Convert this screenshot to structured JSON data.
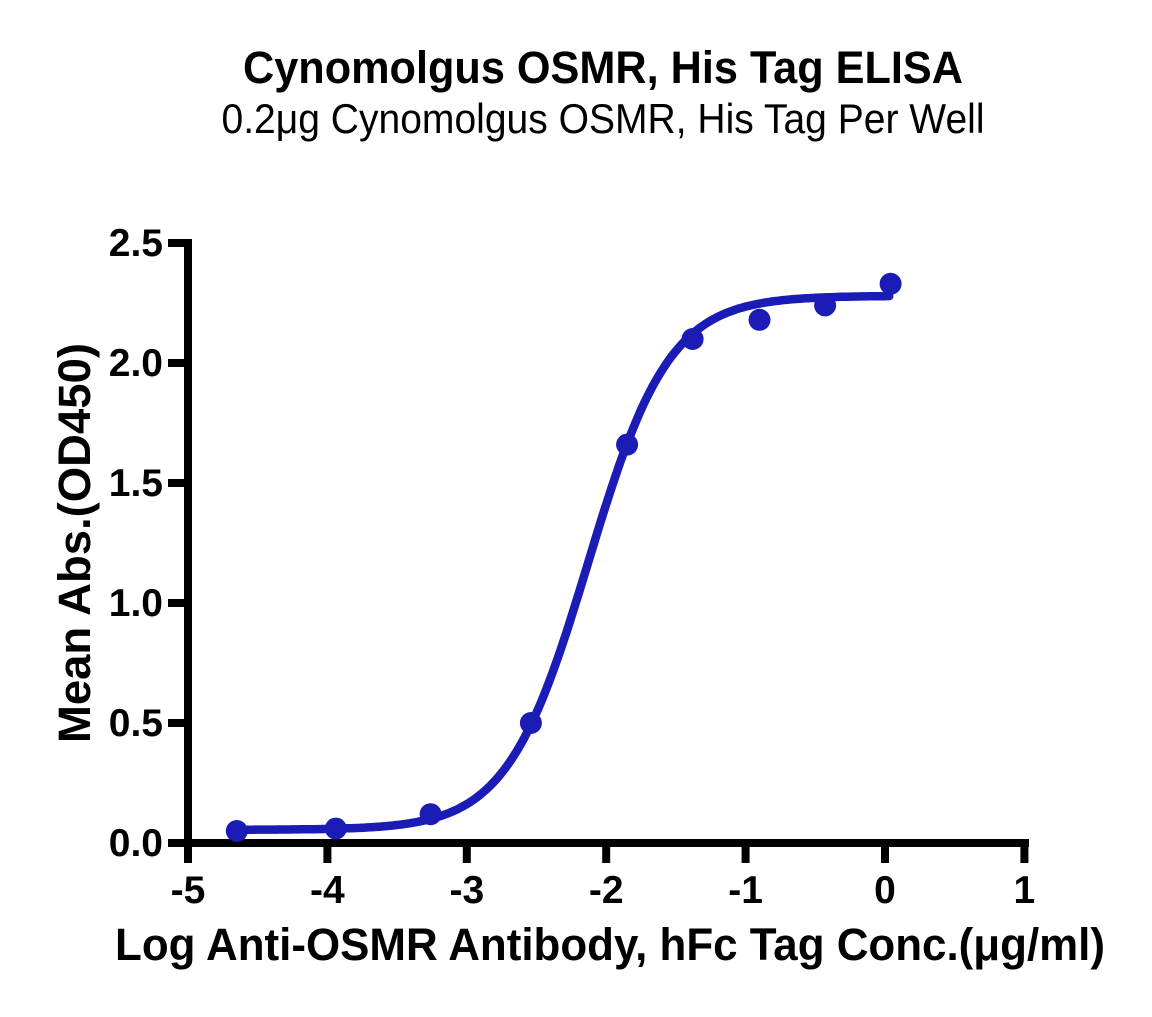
{
  "chart_data": {
    "type": "scatter",
    "title": "Cynomolgus OSMR, His Tag ELISA",
    "subtitle": "0.2μg Cynomolgus OSMR, His Tag Per Well",
    "xlabel": "Log Anti-OSMR Antibody, hFc Tag Conc.(μg/ml)",
    "ylabel": "Mean Abs.(OD450)",
    "xlim": [
      -5,
      1
    ],
    "ylim": [
      0.0,
      2.5
    ],
    "x_ticks": [
      -5,
      -4,
      -3,
      -2,
      -1,
      0,
      1
    ],
    "x_tick_labels": [
      "-5",
      "-4",
      "-3",
      "-2",
      "-1",
      "0",
      "1"
    ],
    "y_ticks": [
      0.0,
      0.5,
      1.0,
      1.5,
      2.0,
      2.5
    ],
    "y_tick_labels": [
      "0.0",
      "0.5",
      "1.0",
      "1.5",
      "2.0",
      "2.5"
    ],
    "grid": false,
    "legend": null,
    "series": [
      {
        "name": "Anti-OSMR Antibody, hFc Tag",
        "x": [
          -4.65,
          -3.94,
          -3.26,
          -2.54,
          -1.85,
          -1.38,
          -0.9,
          -0.43,
          0.04
        ],
        "y": [
          0.05,
          0.06,
          0.12,
          0.5,
          1.66,
          2.1,
          2.18,
          2.24,
          2.33
        ]
      }
    ],
    "curve_fit": {
      "model": "4PL sigmoid (dose-response)",
      "bottom": 0.055,
      "top": 2.28,
      "log_ec50": -2.13,
      "hill": 1.49,
      "x_start": -4.65,
      "x_end": 0.03
    },
    "colors": {
      "series": "#1b1bb5",
      "axis": "#000000",
      "text": "#000000",
      "background": "#ffffff"
    }
  }
}
